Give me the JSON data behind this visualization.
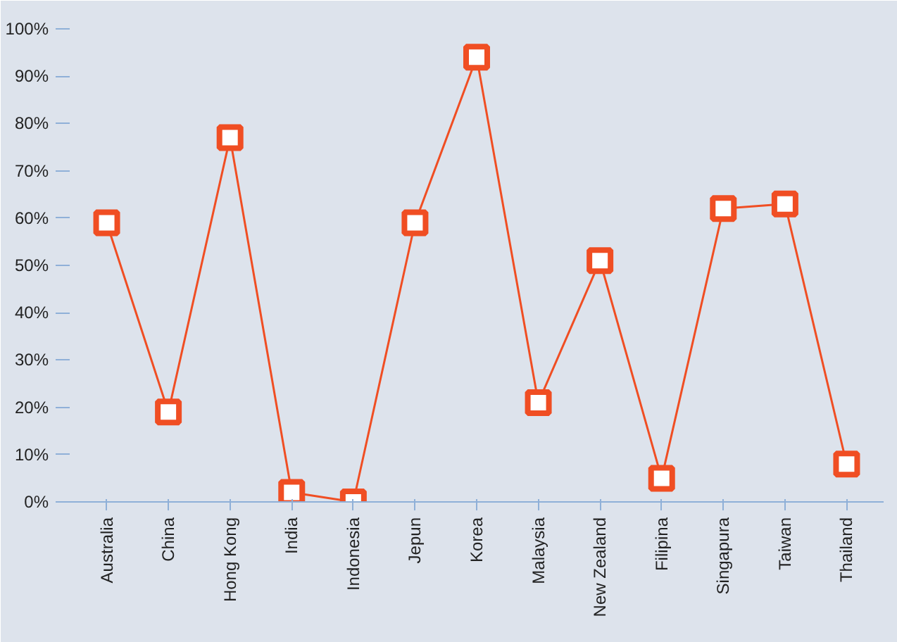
{
  "chart_data": {
    "type": "line",
    "categories": [
      "Australia",
      "China",
      "Hong Kong",
      "India",
      "Indonesia",
      "Jepun",
      "Korea",
      "Malaysia",
      "New Zealand",
      "Filipina",
      "Singapura",
      "Taiwan",
      "Thailand"
    ],
    "series": [
      {
        "color": "#f04e23",
        "values": [
          59,
          19,
          77,
          2,
          0,
          59,
          94,
          21,
          51,
          5,
          62,
          63,
          8
        ]
      }
    ],
    "ylim": [
      0,
      100
    ],
    "yticks": [
      {
        "value": 0,
        "label": "0%"
      },
      {
        "value": 10,
        "label": "10%"
      },
      {
        "value": 20,
        "label": "20%"
      },
      {
        "value": 30,
        "label": "30%"
      },
      {
        "value": 40,
        "label": "40%"
      },
      {
        "value": 50,
        "label": "50%"
      },
      {
        "value": 60,
        "label": "60%"
      },
      {
        "value": 70,
        "label": "70%"
      },
      {
        "value": 80,
        "label": "80%"
      },
      {
        "value": 90,
        "label": "90%"
      },
      {
        "value": 100,
        "label": "100%"
      }
    ],
    "grid": false,
    "marker": "square",
    "line_style": "solid"
  }
}
